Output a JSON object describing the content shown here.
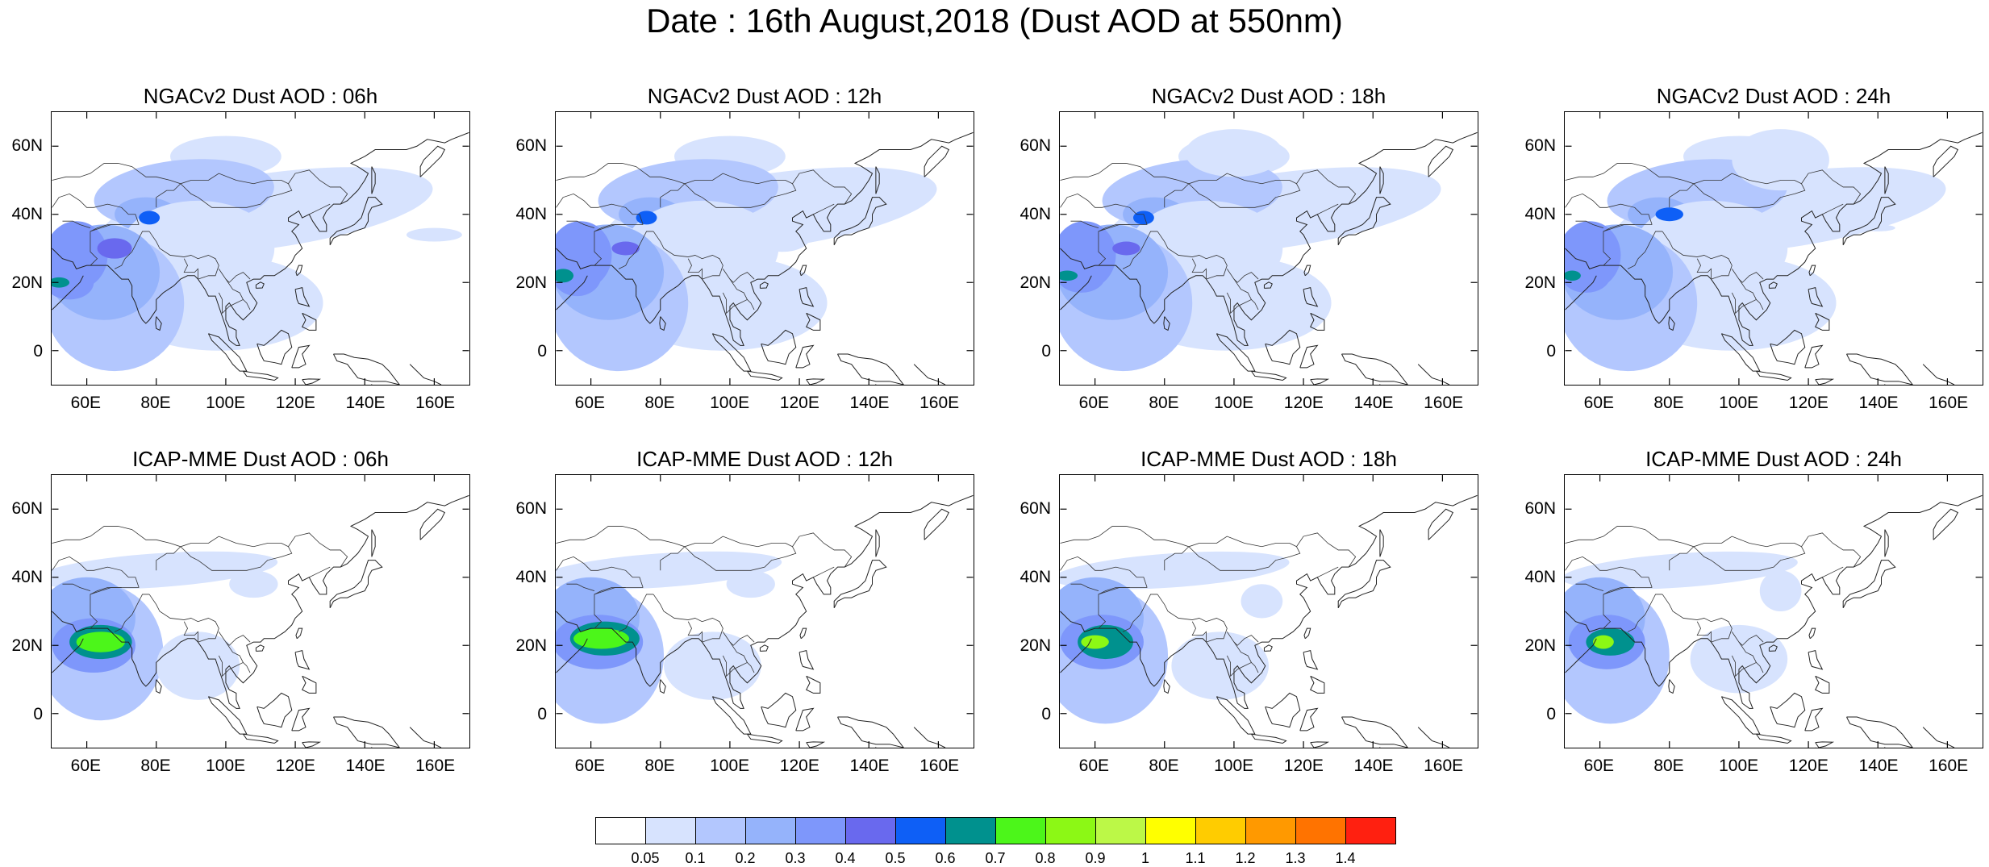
{
  "title": "Date : 16th August,2018 (Dust AOD at 550nm)",
  "panels": [
    {
      "title": "NGACv2 Dust AOD : 06h"
    },
    {
      "title": "NGACv2 Dust AOD : 12h"
    },
    {
      "title": "NGACv2 Dust AOD : 18h"
    },
    {
      "title": "NGACv2 Dust AOD : 24h"
    },
    {
      "title": "ICAP-MME Dust AOD : 06h"
    },
    {
      "title": "ICAP-MME Dust AOD : 12h"
    },
    {
      "title": "ICAP-MME Dust AOD : 18h"
    },
    {
      "title": "ICAP-MME Dust AOD : 24h"
    }
  ],
  "axes": {
    "lat_labels": [
      "60N",
      "40N",
      "20N",
      "0"
    ],
    "lat_values": [
      60,
      40,
      20,
      0
    ],
    "lon_labels": [
      "60E",
      "80E",
      "100E",
      "120E",
      "140E",
      "160E"
    ],
    "lon_values": [
      60,
      80,
      100,
      120,
      140,
      160
    ],
    "lon_range": [
      50,
      170
    ],
    "lat_range": [
      -10,
      70
    ]
  },
  "colorbar": {
    "labels": [
      "0.05",
      "0.1",
      "0.2",
      "0.3",
      "0.4",
      "0.5",
      "0.6",
      "0.7",
      "0.8",
      "0.9",
      "1",
      "1.1",
      "1.2",
      "1.3",
      "1.4"
    ],
    "colors": [
      "#ffffff",
      "#d7e3fe",
      "#b3c7fe",
      "#95b3fb",
      "#7e97fb",
      "#6969ee",
      "#0e5ff6",
      "#00918e",
      "#4cf61a",
      "#8cf815",
      "#bcf847",
      "#ffff00",
      "#ffcc00",
      "#ff9900",
      "#ff7300",
      "#ff2010"
    ]
  }
}
